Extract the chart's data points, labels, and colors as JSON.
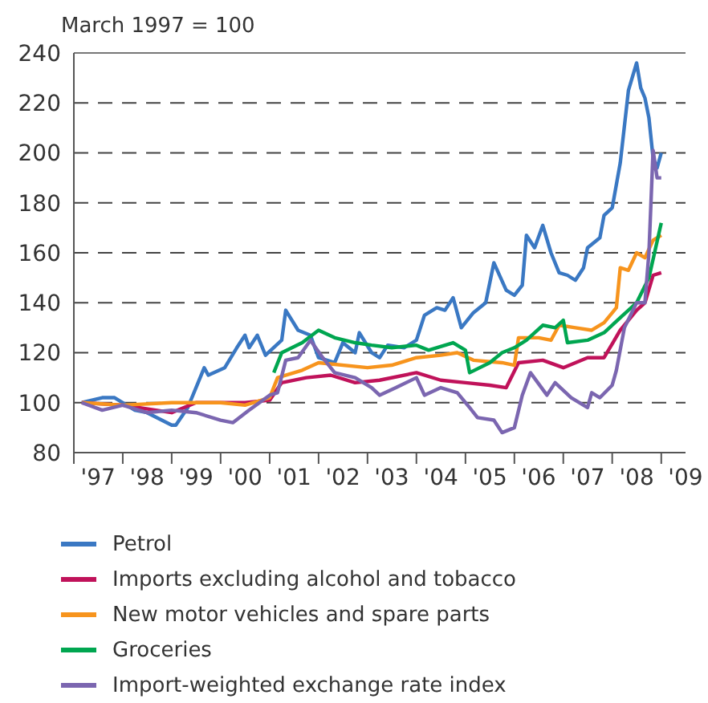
{
  "chart_data": {
    "type": "line",
    "subtitle": "March 1997 = 100",
    "xlim": [
      "1997-01",
      "2009-07"
    ],
    "xticks": [
      {
        "value": "1997-01",
        "label": null
      },
      {
        "value": "1997-07",
        "label": "'97"
      },
      {
        "value": "1998-01",
        "label": null
      },
      {
        "value": "1998-07",
        "label": "'98"
      },
      {
        "value": "1999-01",
        "label": null
      },
      {
        "value": "1999-07",
        "label": "'99"
      },
      {
        "value": "2000-01",
        "label": null
      },
      {
        "value": "2000-07",
        "label": "'00"
      },
      {
        "value": "2001-01",
        "label": null
      },
      {
        "value": "2001-07",
        "label": "'01"
      },
      {
        "value": "2002-01",
        "label": null
      },
      {
        "value": "2002-07",
        "label": "'02"
      },
      {
        "value": "2003-01",
        "label": null
      },
      {
        "value": "2003-07",
        "label": "'03"
      },
      {
        "value": "2004-01",
        "label": null
      },
      {
        "value": "2004-07",
        "label": "'04"
      },
      {
        "value": "2005-01",
        "label": null
      },
      {
        "value": "2005-07",
        "label": "'05"
      },
      {
        "value": "2006-01",
        "label": null
      },
      {
        "value": "2006-07",
        "label": "'06"
      },
      {
        "value": "2007-01",
        "label": null
      },
      {
        "value": "2007-07",
        "label": "'07"
      },
      {
        "value": "2008-01",
        "label": null
      },
      {
        "value": "2008-07",
        "label": "'08"
      },
      {
        "value": "2009-01",
        "label": null
      },
      {
        "value": "2009-07",
        "label": "'09"
      }
    ],
    "ylim": [
      80,
      240
    ],
    "yticks": [
      80,
      100,
      120,
      140,
      160,
      180,
      200,
      220,
      240
    ],
    "grid": "y",
    "legend": "bottom",
    "line_style": "solid",
    "marker": "none",
    "series": [
      {
        "name": "Petrol",
        "color": "#3a78c3",
        "x": [
          "1997-03",
          "1997-08",
          "1997-11",
          "1998-04",
          "1998-07",
          "1999-01",
          "1999-02",
          "1999-05",
          "1999-09",
          "1999-10",
          "2000-02",
          "2000-05",
          "2000-07",
          "2000-08",
          "2000-10",
          "2000-12",
          "2001-04",
          "2001-05",
          "2001-08",
          "2001-11",
          "2002-01",
          "2002-05",
          "2002-07",
          "2002-10",
          "2002-11",
          "2003-02",
          "2003-04",
          "2003-06",
          "2003-10",
          "2004-01",
          "2004-03",
          "2004-06",
          "2004-08",
          "2004-10",
          "2004-12",
          "2005-03",
          "2005-06",
          "2005-08",
          "2005-11",
          "2006-01",
          "2006-03",
          "2006-04",
          "2006-06",
          "2006-08",
          "2006-10",
          "2006-12",
          "2007-02",
          "2007-04",
          "2007-06",
          "2007-07",
          "2007-10",
          "2007-11",
          "2008-01",
          "2008-03",
          "2008-05",
          "2008-07",
          "2008-08",
          "2008-09",
          "2008-10",
          "2008-11",
          "2008-12",
          "2009-01"
        ],
        "values": [
          100,
          102,
          102,
          97,
          96,
          91,
          91,
          98,
          114,
          111,
          114,
          122,
          127,
          122,
          127,
          119,
          125,
          137,
          129,
          127,
          118,
          116,
          124,
          120,
          128,
          120,
          118,
          123,
          122,
          125,
          135,
          138,
          137,
          142,
          130,
          136,
          140,
          156,
          145,
          143,
          147,
          167,
          162,
          171,
          160,
          152,
          151,
          149,
          154,
          162,
          166,
          175,
          178,
          196,
          225,
          236,
          226,
          222,
          214,
          198,
          194,
          200
        ]
      },
      {
        "name": "Imports excluding alcohol and tobacco",
        "color": "#c0125a",
        "x": [
          "1997-03",
          "1998-01",
          "1999-01",
          "1999-07",
          "2000-07",
          "2001-01",
          "2001-04",
          "2001-10",
          "2002-04",
          "2002-10",
          "2003-04",
          "2004-01",
          "2004-07",
          "2005-01",
          "2005-07",
          "2005-11",
          "2006-02",
          "2006-08",
          "2007-01",
          "2007-07",
          "2007-11",
          "2008-03",
          "2008-07",
          "2008-09",
          "2008-11",
          "2009-01"
        ],
        "values": [
          100,
          99,
          96,
          100,
          100,
          101,
          108,
          110,
          111,
          108,
          109,
          112,
          109,
          108,
          107,
          106,
          116,
          117,
          114,
          118,
          118,
          129,
          137,
          140,
          151,
          152
        ]
      },
      {
        "name": "New motor vehicles and spare parts",
        "color": "#f7941d",
        "x": [
          "1997-03",
          "1998-01",
          "1999-01",
          "2000-01",
          "2000-07",
          "2001-01",
          "2001-03",
          "2001-09",
          "2002-01",
          "2003-01",
          "2003-07",
          "2004-01",
          "2004-07",
          "2004-11",
          "2005-03",
          "2005-10",
          "2006-01",
          "2006-02",
          "2006-07",
          "2006-10",
          "2006-12",
          "2007-04",
          "2007-08",
          "2007-11",
          "2008-02",
          "2008-03",
          "2008-05",
          "2008-07",
          "2008-09",
          "2008-11",
          "2009-01"
        ],
        "values": [
          100,
          99,
          100,
          100,
          99,
          102,
          110,
          113,
          116,
          114,
          115,
          118,
          119,
          120,
          117,
          116,
          115,
          126,
          126,
          125,
          131,
          130,
          129,
          132,
          138,
          154,
          153,
          160,
          158,
          165,
          167
        ]
      },
      {
        "name": "Groceries",
        "color": "#00a650",
        "x": [
          "2001-02",
          "2001-04",
          "2001-09",
          "2002-01",
          "2002-05",
          "2002-10",
          "2003-02",
          "2003-07",
          "2004-01",
          "2004-04",
          "2004-10",
          "2005-01",
          "2005-02",
          "2005-07",
          "2005-10",
          "2006-01",
          "2006-04",
          "2006-08",
          "2006-11",
          "2007-01",
          "2007-02",
          "2007-07",
          "2007-11",
          "2008-03",
          "2008-07",
          "2008-10",
          "2009-01"
        ],
        "values": [
          112,
          120,
          124,
          129,
          126,
          124,
          123,
          122,
          123,
          121,
          124,
          121,
          112,
          116,
          120,
          122,
          125,
          131,
          130,
          133,
          124,
          125,
          128,
          134,
          140,
          150,
          172
        ]
      },
      {
        "name": "Import-weighted exchange rate index",
        "color": "#7b66b0",
        "x": [
          "1997-03",
          "1997-08",
          "1998-01",
          "1998-07",
          "1999-01",
          "1999-07",
          "2000-01",
          "2000-04",
          "2000-08",
          "2001-01",
          "2001-03",
          "2001-05",
          "2001-08",
          "2001-11",
          "2002-02",
          "2002-05",
          "2002-10",
          "2003-02",
          "2003-04",
          "2003-08",
          "2004-01",
          "2004-03",
          "2004-07",
          "2004-11",
          "2005-02",
          "2005-04",
          "2005-08",
          "2005-10",
          "2006-01",
          "2006-03",
          "2006-05",
          "2006-09",
          "2006-11",
          "2007-03",
          "2007-07",
          "2007-08",
          "2007-10",
          "2008-01",
          "2008-02",
          "2008-04",
          "2008-07",
          "2008-09",
          "2008-10",
          "2008-11",
          "2008-12",
          "2009-01"
        ],
        "values": [
          100,
          97,
          99,
          96,
          97,
          96,
          93,
          92,
          97,
          103,
          104,
          117,
          118,
          125,
          118,
          112,
          110,
          106,
          103,
          106,
          110,
          103,
          106,
          104,
          98,
          94,
          93,
          88,
          90,
          103,
          112,
          103,
          108,
          102,
          98,
          104,
          102,
          107,
          113,
          130,
          140,
          140,
          160,
          201,
          190,
          190
        ]
      }
    ]
  }
}
